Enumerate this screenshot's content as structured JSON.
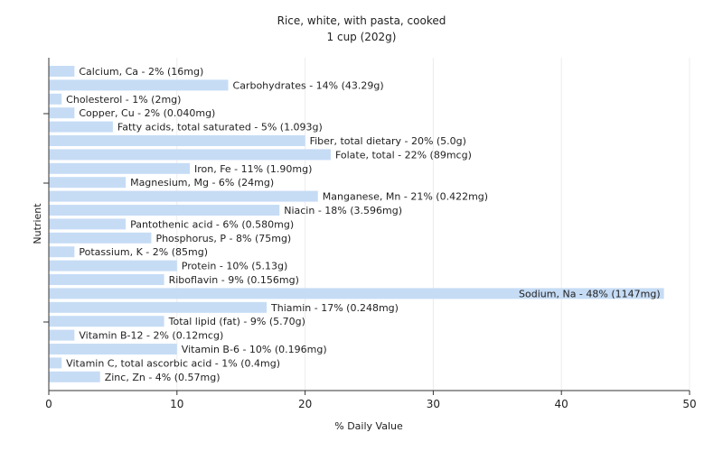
{
  "chart_data": {
    "type": "bar",
    "orientation": "horizontal",
    "title": "Rice, white, with pasta, cooked",
    "subtitle": "1 cup (202g)",
    "xlabel": "% Daily Value",
    "ylabel": "Nutrient",
    "xlim": [
      0,
      50
    ],
    "x_ticks": [
      "0",
      "10",
      "20",
      "30",
      "40",
      "50"
    ],
    "grid": true,
    "bar_color": "#c6dcf5",
    "categories": [
      "Calcium, Ca",
      "Carbohydrates",
      "Cholesterol",
      "Copper, Cu",
      "Fatty acids, total saturated",
      "Fiber, total dietary",
      "Folate, total",
      "Iron, Fe",
      "Magnesium, Mg",
      "Manganese, Mn",
      "Niacin",
      "Pantothenic acid",
      "Phosphorus, P",
      "Potassium, K",
      "Protein",
      "Riboflavin",
      "Sodium, Na",
      "Thiamin",
      "Total lipid (fat)",
      "Vitamin B-12",
      "Vitamin B-6",
      "Vitamin C, total ascorbic acid",
      "Zinc, Zn"
    ],
    "values": [
      2,
      14,
      1,
      2,
      5,
      20,
      22,
      11,
      6,
      21,
      18,
      6,
      8,
      2,
      10,
      9,
      48,
      17,
      9,
      2,
      10,
      1,
      4
    ],
    "labels": [
      "Calcium, Ca - 2% (16mg)",
      "Carbohydrates - 14% (43.29g)",
      "Cholesterol - 1% (2mg)",
      "Copper, Cu - 2% (0.040mg)",
      "Fatty acids, total saturated - 5% (1.093g)",
      "Fiber, total dietary - 20% (5.0g)",
      "Folate, total - 22% (89mcg)",
      "Iron, Fe - 11% (1.90mg)",
      "Magnesium, Mg - 6% (24mg)",
      "Manganese, Mn - 21% (0.422mg)",
      "Niacin - 18% (3.596mg)",
      "Pantothenic acid - 6% (0.580mg)",
      "Phosphorus, P - 8% (75mg)",
      "Potassium, K - 2% (85mg)",
      "Protein - 10% (5.13g)",
      "Riboflavin - 9% (0.156mg)",
      "Sodium, Na - 48% (1147mg)",
      "Thiamin - 17% (0.248mg)",
      "Total lipid (fat) - 9% (5.70g)",
      "Vitamin B-12 - 2% (0.12mcg)",
      "Vitamin B-6 - 10% (0.196mg)",
      "Vitamin C, total ascorbic acid - 1% (0.4mg)",
      "Zinc, Zn - 4% (0.57mg)"
    ]
  }
}
